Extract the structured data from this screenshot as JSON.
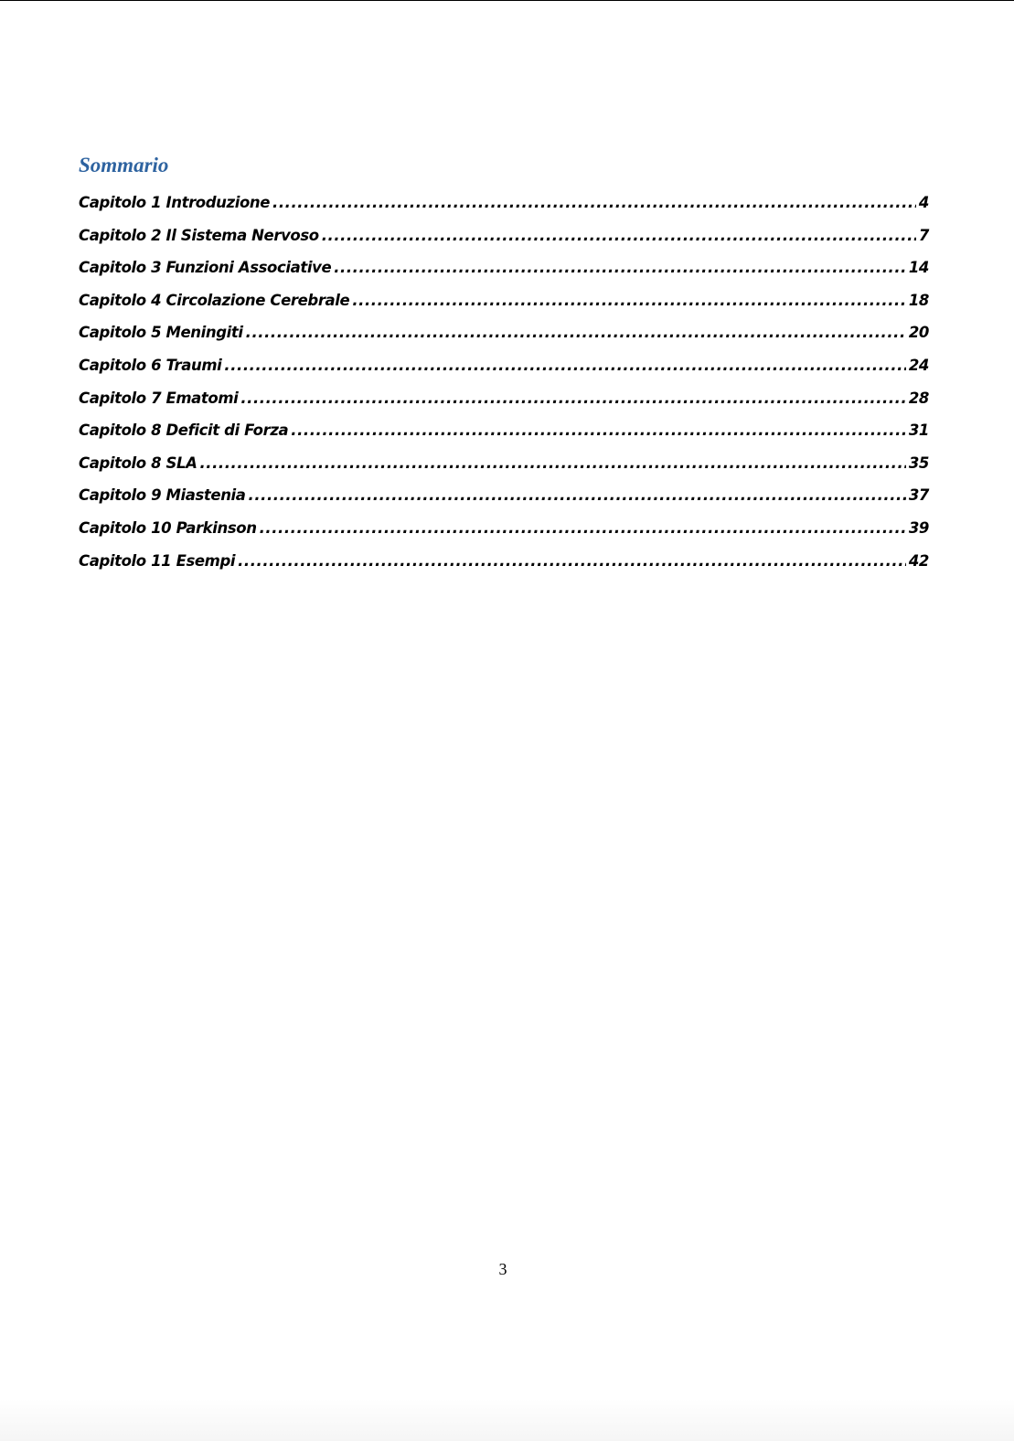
{
  "title": "Sommario",
  "toc": [
    {
      "label": "Capitolo 1 Introduzione",
      "page": "4"
    },
    {
      "label": "Capitolo 2 Il Sistema Nervoso",
      "page": "7"
    },
    {
      "label": "Capitolo 3 Funzioni Associative",
      "page": "14"
    },
    {
      "label": "Capitolo 4 Circolazione Cerebrale",
      "page": "18"
    },
    {
      "label": "Capitolo 5 Meningiti",
      "page": "20"
    },
    {
      "label": "Capitolo 6 Traumi",
      "page": "24"
    },
    {
      "label": "Capitolo 7 Ematomi",
      "page": "28"
    },
    {
      "label": "Capitolo 8 Deficit di Forza",
      "page": "31"
    },
    {
      "label": "Capitolo 8 SLA",
      "page": "35"
    },
    {
      "label": "Capitolo 9 Miastenia",
      "page": "37"
    },
    {
      "label": "Capitolo 10 Parkinson",
      "page": "39"
    },
    {
      "label": "Capitolo 11 Esempi",
      "page": "42"
    }
  ],
  "page_number": "3",
  "colors": {
    "title": "#2e63a0",
    "text": "#000000"
  }
}
